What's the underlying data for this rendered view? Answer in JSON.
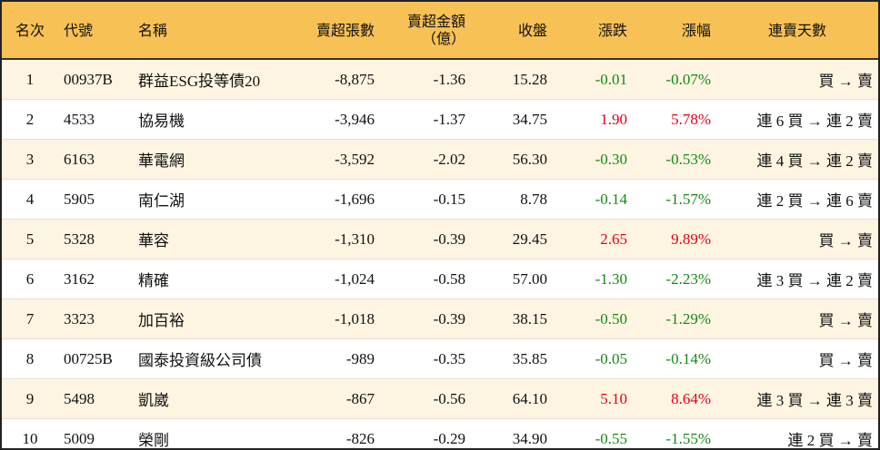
{
  "headers": {
    "rank": "名次",
    "code": "代號",
    "name": "名稱",
    "lots": "賣超張數",
    "amount": "賣超金額（億）",
    "close": "收盤",
    "change": "漲跌",
    "pct": "漲幅",
    "streak": "連賣天數"
  },
  "colors": {
    "header": "#F8C155",
    "up": "#e0001b",
    "down": "#138a13"
  },
  "rows": [
    {
      "rank": "1",
      "code": "00937B",
      "name": "群益ESG投等債20",
      "lots": "-8,875",
      "amount": "-1.36",
      "close": "15.28",
      "change": "-0.01",
      "pct": "-0.07%",
      "streak": "買 → 賣",
      "dir": "dn"
    },
    {
      "rank": "2",
      "code": "4533",
      "name": "協易機",
      "lots": "-3,946",
      "amount": "-1.37",
      "close": "34.75",
      "change": "1.90",
      "pct": "5.78%",
      "streak": "連 6 買 → 連 2 賣",
      "dir": "up"
    },
    {
      "rank": "3",
      "code": "6163",
      "name": "華電網",
      "lots": "-3,592",
      "amount": "-2.02",
      "close": "56.30",
      "change": "-0.30",
      "pct": "-0.53%",
      "streak": "連 4 買 → 連 2 賣",
      "dir": "dn"
    },
    {
      "rank": "4",
      "code": "5905",
      "name": "南仁湖",
      "lots": "-1,696",
      "amount": "-0.15",
      "close": "8.78",
      "change": "-0.14",
      "pct": "-1.57%",
      "streak": "連 2 買 → 連 6 賣",
      "dir": "dn"
    },
    {
      "rank": "5",
      "code": "5328",
      "name": "華容",
      "lots": "-1,310",
      "amount": "-0.39",
      "close": "29.45",
      "change": "2.65",
      "pct": "9.89%",
      "streak": "買 → 賣",
      "dir": "up"
    },
    {
      "rank": "6",
      "code": "3162",
      "name": "精確",
      "lots": "-1,024",
      "amount": "-0.58",
      "close": "57.00",
      "change": "-1.30",
      "pct": "-2.23%",
      "streak": "連 3 買 → 連 2 賣",
      "dir": "dn"
    },
    {
      "rank": "7",
      "code": "3323",
      "name": "加百裕",
      "lots": "-1,018",
      "amount": "-0.39",
      "close": "38.15",
      "change": "-0.50",
      "pct": "-1.29%",
      "streak": "買 → 賣",
      "dir": "dn"
    },
    {
      "rank": "8",
      "code": "00725B",
      "name": "國泰投資級公司債",
      "lots": "-989",
      "amount": "-0.35",
      "close": "35.85",
      "change": "-0.05",
      "pct": "-0.14%",
      "streak": "買 → 賣",
      "dir": "dn"
    },
    {
      "rank": "9",
      "code": "5498",
      "name": "凱崴",
      "lots": "-867",
      "amount": "-0.56",
      "close": "64.10",
      "change": "5.10",
      "pct": "8.64%",
      "streak": "連 3 買 → 連 3 賣",
      "dir": "up"
    },
    {
      "rank": "10",
      "code": "5009",
      "name": "榮剛",
      "lots": "-826",
      "amount": "-0.29",
      "close": "34.90",
      "change": "-0.55",
      "pct": "-1.55%",
      "streak": "連 2 買 → 賣",
      "dir": "dn"
    }
  ]
}
